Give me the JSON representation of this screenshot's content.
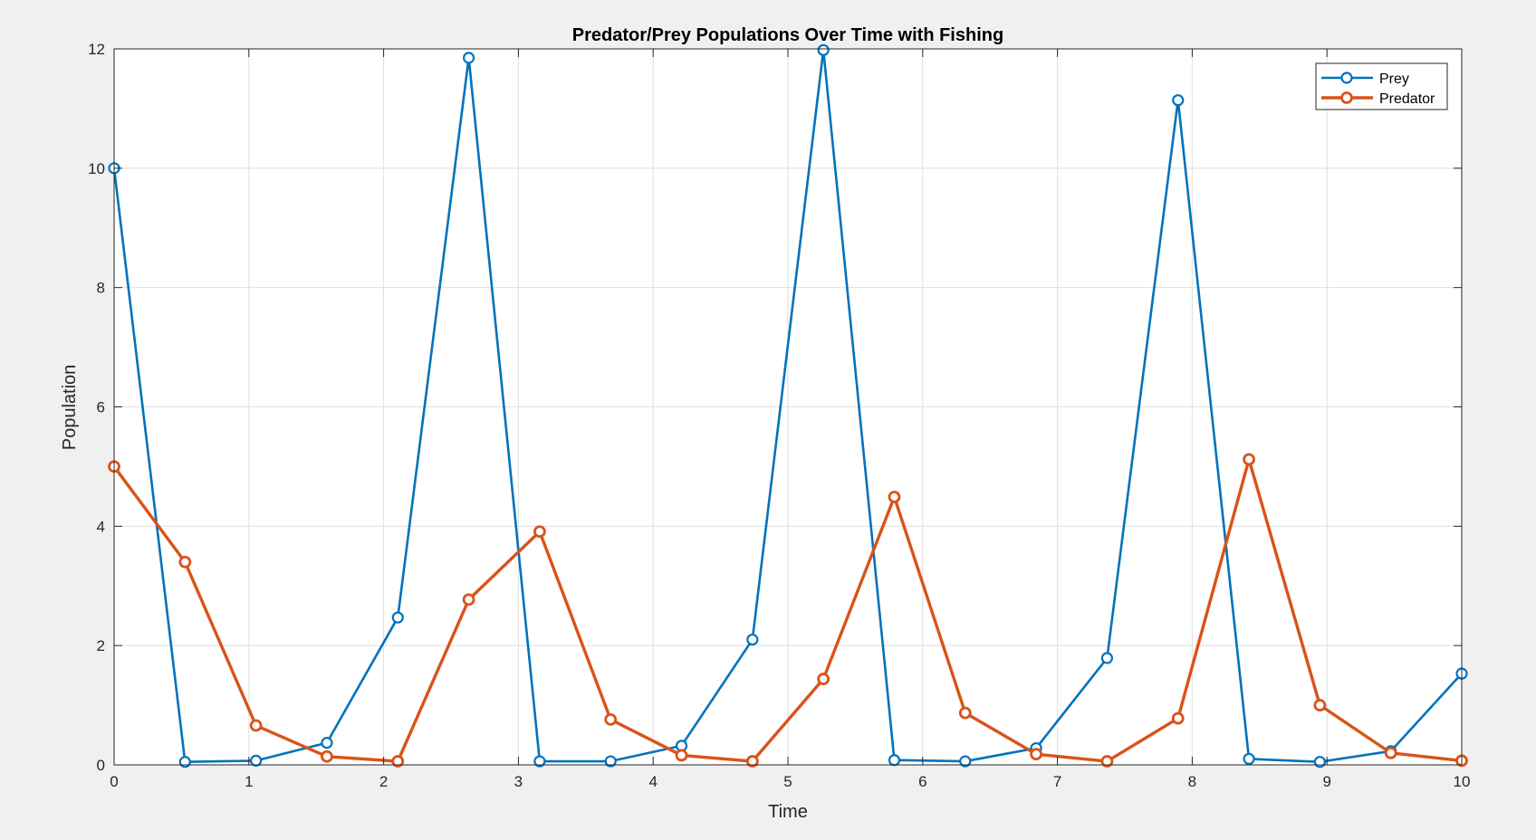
{
  "chart_data": {
    "type": "line",
    "title": "Predator/Prey Populations Over Time with Fishing",
    "xlabel": "Time",
    "ylabel": "Population",
    "xlim": [
      0,
      10
    ],
    "ylim": [
      0,
      12
    ],
    "xticks": [
      "0",
      "1",
      "2",
      "3",
      "4",
      "5",
      "6",
      "7",
      "8",
      "9",
      "10"
    ],
    "yticks": [
      "0",
      "2",
      "4",
      "6",
      "8",
      "10",
      "12"
    ],
    "grid": true,
    "legend_position": "top-right",
    "markers": "circle",
    "x": [
      0,
      0.5263,
      1.0526,
      1.5789,
      2.1053,
      2.6316,
      3.1579,
      3.6842,
      4.2105,
      4.7368,
      5.2632,
      5.7895,
      6.3158,
      6.8421,
      7.3684,
      7.8947,
      8.4211,
      8.9474,
      9.4737,
      10
    ],
    "series": [
      {
        "name": "Prey",
        "color": "#0072bd",
        "values": [
          10.0,
          0.05,
          0.07,
          0.37,
          2.47,
          11.85,
          0.06,
          0.06,
          0.32,
          2.1,
          11.98,
          0.08,
          0.06,
          0.28,
          1.79,
          11.14,
          0.1,
          0.05,
          0.23,
          1.53
        ]
      },
      {
        "name": "Predator",
        "color": "#d95319",
        "values": [
          5.0,
          3.4,
          0.66,
          0.14,
          0.06,
          2.77,
          3.91,
          0.76,
          0.16,
          0.06,
          1.44,
          4.49,
          0.87,
          0.18,
          0.06,
          0.78,
          5.12,
          1.0,
          0.2,
          0.07
        ]
      }
    ]
  }
}
